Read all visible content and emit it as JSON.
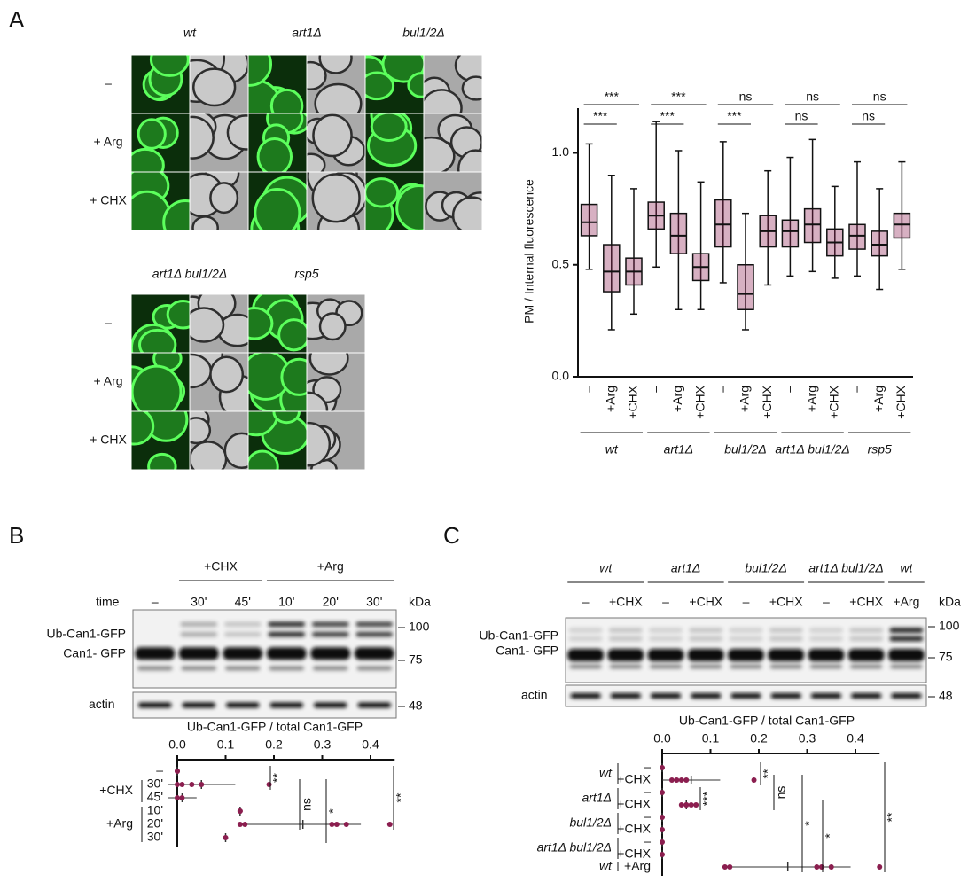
{
  "panel_labels": [
    "A",
    "B",
    "C"
  ],
  "microscopy": {
    "strains": [
      "wt",
      "art1Δ",
      "bul1/2Δ",
      "art1Δ bul1/2Δ",
      "rsp5"
    ],
    "conditions": [
      "–",
      "+ Arg",
      "+ CHX"
    ]
  },
  "blot_b": {
    "time_label": "time",
    "lanes": [
      "–",
      "30'",
      "45'",
      "10'",
      "20'",
      "30'"
    ],
    "groups": [
      "+CHX",
      "+Arg"
    ],
    "kda": "kDa",
    "markers": [
      "100",
      "75",
      "48"
    ],
    "bands": [
      "Ub-Can1-GFP",
      "Can1- GFP"
    ],
    "loading": "actin"
  },
  "blot_c": {
    "groups": [
      "wt",
      "art1Δ",
      "bul1/2Δ",
      "art1Δ bul1/2Δ",
      "wt"
    ],
    "lanes": [
      "–",
      "+CHX",
      "–",
      "+CHX",
      "–",
      "+CHX",
      "–",
      "+CHX",
      "+Arg"
    ],
    "kda": "kDa",
    "markers": [
      "100",
      "75",
      "48"
    ],
    "bands": [
      "Ub-Can1-GFP",
      "Can1- GFP"
    ],
    "loading": "actin"
  },
  "chart_data": [
    {
      "type": "box",
      "ylabel": "PM / Internal fluorescence",
      "categories": [
        "–",
        "+Arg",
        "+CHX",
        "–",
        "+Arg",
        "+CHX",
        "–",
        "+Arg",
        "+CHX",
        "–",
        "+Arg",
        "+CHX",
        "–",
        "+Arg",
        "+CHX"
      ],
      "groups": [
        "wt",
        "art1Δ",
        "bul1/2Δ",
        "art1Δ bul1/2Δ",
        "rsp5"
      ],
      "significance": [
        [
          "***",
          "***"
        ],
        [
          "***",
          "***"
        ],
        [
          "***",
          "ns"
        ],
        [
          "ns",
          "ns"
        ],
        [
          "ns",
          "ns"
        ]
      ],
      "color": "#8b1e4f",
      "ylim": [
        0,
        1.2
      ],
      "yticks": [
        {
          "value": 0,
          "label": "0.0"
        },
        {
          "value": 0.5,
          "label": "0.5"
        },
        {
          "value": 1,
          "label": "1.0"
        }
      ],
      "min": [
        0.48,
        0.21,
        0.28,
        0.49,
        0.3,
        0.3,
        0.42,
        0.21,
        0.41,
        0.45,
        0.47,
        0.44,
        0.45,
        0.39,
        0.48
      ],
      "q1": [
        0.63,
        0.38,
        0.41,
        0.66,
        0.55,
        0.43,
        0.58,
        0.3,
        0.58,
        0.58,
        0.6,
        0.54,
        0.57,
        0.54,
        0.62
      ],
      "median": [
        0.69,
        0.47,
        0.47,
        0.72,
        0.63,
        0.49,
        0.68,
        0.37,
        0.65,
        0.65,
        0.68,
        0.6,
        0.63,
        0.59,
        0.68
      ],
      "q3": [
        0.77,
        0.59,
        0.53,
        0.78,
        0.73,
        0.55,
        0.79,
        0.5,
        0.72,
        0.7,
        0.75,
        0.66,
        0.68,
        0.65,
        0.73
      ],
      "max": [
        1.04,
        0.9,
        0.84,
        1.14,
        1.01,
        0.87,
        1.05,
        0.73,
        0.92,
        0.98,
        1.06,
        0.85,
        0.96,
        0.84,
        0.96
      ]
    },
    {
      "type": "dot",
      "xlabel": "Ub-Can1-GFP / total Can1-GFP",
      "color": "#8b1e4f",
      "xlim": [
        0,
        0.45
      ],
      "xticks": [
        {
          "value": 0,
          "label": "0.0"
        },
        0.1,
        0.2,
        0.3,
        0.4
      ],
      "groups": [
        {
          "categories": [
            "–"
          ],
          "values": [
            0
          ],
          "errors": [
            0
          ],
          "points": [
            [
              0,
              0
            ]
          ]
        },
        {
          "label": "+CHX",
          "categories": [
            "30'",
            "45'"
          ],
          "values": [
            0.05,
            0.01
          ],
          "errors": [
            0.07,
            0.03
          ],
          "points": [
            [
              0,
              0.01,
              0.03,
              0.05,
              0.19
            ],
            [
              0,
              0.01
            ]
          ]
        },
        {
          "label": "+Arg",
          "categories": [
            "10'",
            "20'",
            "30'"
          ],
          "values": [
            0.13,
            0.26,
            0.1
          ],
          "errors": [
            0.005,
            0.12,
            0.005
          ],
          "points": [
            [
              0.13,
              0.13
            ],
            [
              0.13,
              0.14,
              0.32,
              0.33,
              0.35,
              0.44
            ],
            [
              0.1
            ]
          ]
        }
      ],
      "significance": [
        "**",
        "ns",
        "*",
        "**"
      ]
    },
    {
      "type": "dot",
      "xlabel": "Ub-Can1-GFP / total Can1-GFP",
      "color": "#8b1e4f",
      "xlim": [
        0,
        0.45
      ],
      "xticks": [
        {
          "value": 0,
          "label": "0.0"
        },
        0.1,
        0.2,
        0.3,
        0.4
      ],
      "groups": [
        {
          "label": "wt",
          "categories": [
            "–",
            "+CHX"
          ],
          "values": [
            0,
            0.06
          ],
          "errors": [
            0,
            0.06
          ],
          "points": [
            [
              0
            ],
            [
              0.02,
              0.03,
              0.04,
              0.05,
              0.19
            ]
          ]
        },
        {
          "label": "art1Δ",
          "categories": [
            "–",
            "+CHX"
          ],
          "values": [
            0,
            0.05
          ],
          "errors": [
            0,
            0.01
          ],
          "points": [
            [
              0
            ],
            [
              0.04,
              0.05,
              0.05,
              0.06,
              0.07
            ]
          ]
        },
        {
          "label": "bul1/2Δ",
          "categories": [
            "–",
            "+CHX"
          ],
          "values": [
            0,
            0
          ],
          "errors": [
            0,
            0
          ],
          "points": [
            [
              0
            ],
            [
              0
            ]
          ]
        },
        {
          "label": "art1Δ bul1/2Δ",
          "categories": [
            "–",
            "+CHX"
          ],
          "values": [
            0,
            0
          ],
          "errors": [
            0,
            0
          ],
          "points": [
            [
              0
            ],
            [
              0
            ]
          ]
        },
        {
          "label": "wt",
          "categories": [
            "+Arg"
          ],
          "values": [
            0.26
          ],
          "errors": [
            0.13
          ],
          "points": [
            [
              0.13,
              0.14,
              0.32,
              0.33,
              0.35,
              0.45
            ]
          ]
        }
      ],
      "significance": [
        "**",
        "***",
        "ns",
        "*",
        "*",
        "**"
      ]
    }
  ]
}
